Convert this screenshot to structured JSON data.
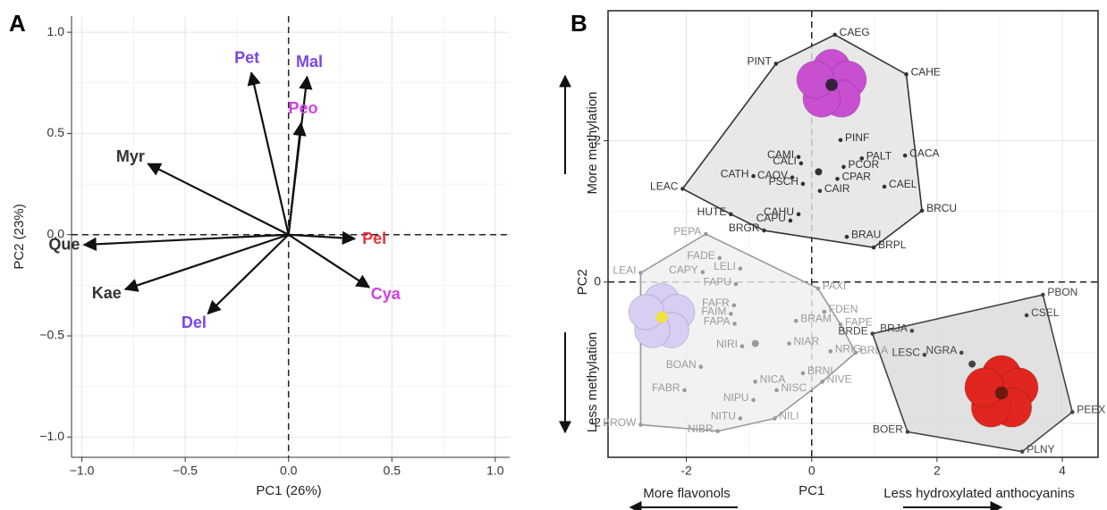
{
  "chart_data": [
    {
      "type": "biplot",
      "panel": "A",
      "xlabel": "PC1 (26%)",
      "ylabel": "PC2 (23%)",
      "xlim": [
        -1.05,
        1.07
      ],
      "ylim": [
        -1.1,
        1.08
      ],
      "grid": true,
      "xticks": [
        {
          "value": -1,
          "label": "−1.0"
        },
        {
          "value": -0.5,
          "label": "−0.5"
        },
        {
          "value": 0,
          "label": "0.0"
        },
        {
          "value": 0.5,
          "label": "0.5"
        },
        {
          "value": 1,
          "label": "1.0"
        }
      ],
      "yticks": [
        {
          "value": -1,
          "label": "−1.0"
        },
        {
          "value": -0.5,
          "label": "−0.5"
        },
        {
          "value": 0,
          "label": "0.0"
        },
        {
          "value": 0.5,
          "label": "0.5"
        },
        {
          "value": 1,
          "label": "1.0"
        }
      ],
      "arrows": [
        {
          "name": "Pet",
          "x": -0.18,
          "y": 0.8,
          "color": "#7b45e8"
        },
        {
          "name": "Mal",
          "x": 0.09,
          "y": 0.78,
          "color": "#7b45e8"
        },
        {
          "name": "Peo",
          "x": 0.06,
          "y": 0.55,
          "color": "#d23fe6"
        },
        {
          "name": "Myr",
          "x": -0.68,
          "y": 0.35,
          "color": "#333333"
        },
        {
          "name": "Pel",
          "x": 0.32,
          "y": -0.02,
          "color": "#e8343c"
        },
        {
          "name": "Cya",
          "x": 0.39,
          "y": -0.26,
          "color": "#d23fe6"
        },
        {
          "name": "Del",
          "x": -0.39,
          "y": -0.39,
          "color": "#7b45e8"
        },
        {
          "name": "Kae",
          "x": -0.79,
          "y": -0.27,
          "color": "#333333"
        },
        {
          "name": "Que",
          "x": -0.99,
          "y": -0.05,
          "color": "#333333"
        }
      ]
    },
    {
      "type": "scatter",
      "panel": "B",
      "xlabel": "PC1",
      "ylabel": "PC2",
      "annotations": {
        "y_up": "More methylation",
        "y_down": "Less methylation",
        "x_left": "More flavonols",
        "x_right": "Less hydroxylated anthocyanins"
      },
      "xlim": [
        -3.25,
        4.57
      ],
      "ylim": [
        -2.48,
        3.84
      ],
      "grid": true,
      "xticks": [
        -2,
        0,
        2,
        4
      ],
      "yticks": [
        -2,
        0,
        2
      ],
      "groups": [
        {
          "color": "#333333",
          "fill": "#e2e2e2",
          "labels": [
            "CAEG",
            "PINT",
            "CAHE",
            "PINF",
            "CAMI",
            "CACA",
            "PALT",
            "CALI",
            "PCOR",
            "CATH",
            "CAOV",
            "CPAR",
            "PSCH",
            "CAEL",
            "CAIR",
            "LEAC",
            "HUTE",
            "CAHU",
            "CAPU",
            "BRGR",
            "BRCU",
            "BRAU",
            "BRPL"
          ],
          "x": [
            0.37,
            -0.57,
            1.51,
            0.46,
            -0.21,
            1.49,
            0.8,
            -0.17,
            0.51,
            -0.93,
            -0.31,
            0.41,
            -0.14,
            1.16,
            0.13,
            -2.06,
            -1.29,
            -0.21,
            -0.34,
            -0.76,
            1.76,
            0.56,
            0.99
          ],
          "y": [
            3.5,
            3.09,
            2.94,
            2.01,
            1.77,
            1.79,
            1.75,
            1.68,
            1.63,
            1.5,
            1.48,
            1.46,
            1.39,
            1.35,
            1.29,
            1.32,
            0.96,
            0.96,
            0.87,
            0.73,
            1.01,
            0.64,
            0.49
          ],
          "centroid": [
            0.11,
            1.56
          ]
        },
        {
          "color": "#9a9a9a",
          "fill": "#efefef",
          "labels": [
            "PEPA",
            "FADE",
            "CAPY",
            "LEAI",
            "LELI",
            "FAPU",
            "PAXI",
            "FAFR",
            "FDEN",
            "FAIM",
            "BRAM",
            "FAPA",
            "FAPE",
            "NIAR",
            "NIRI",
            "NRIG",
            "BRLA",
            "BOAN",
            "BRNI",
            "NICA",
            "NIVE",
            "FABR",
            "NISC",
            "NIPU",
            "NILI",
            "NITU",
            "BROW",
            "NIBR"
          ],
          "x": [
            -1.69,
            -1.47,
            -1.74,
            -2.73,
            -1.14,
            -1.21,
            0.1,
            -1.24,
            0.2,
            -1.29,
            -0.25,
            -1.23,
            0.46,
            -0.36,
            -1.11,
            0.3,
            0.7,
            -1.77,
            -0.14,
            -0.9,
            0.17,
            -2.03,
            -0.56,
            -0.93,
            -0.59,
            -1.14,
            -2.73,
            -1.5
          ],
          "y": [
            0.68,
            0.34,
            0.14,
            0.13,
            0.19,
            -0.03,
            -0.09,
            -0.33,
            -0.42,
            -0.45,
            -0.55,
            -0.59,
            -0.6,
            -0.87,
            -0.91,
            -0.98,
            -1.0,
            -1.2,
            -1.29,
            -1.41,
            -1.41,
            -1.53,
            -1.53,
            -1.67,
            -1.93,
            -1.93,
            -2.02,
            -2.11
          ],
          "centroid": [
            -0.9,
            -0.87
          ]
        },
        {
          "color": "#444444",
          "fill": "#dadada",
          "labels": [
            "PBON",
            "CSEL",
            "BRJA",
            "BRDE",
            "NGRA",
            "LESC",
            "PEEX",
            "BOER",
            "PLNY"
          ],
          "x": [
            3.69,
            3.43,
            1.6,
            0.97,
            2.39,
            1.8,
            4.16,
            1.53,
            3.36
          ],
          "y": [
            -0.18,
            -0.47,
            -0.69,
            -0.73,
            -1.0,
            -1.03,
            -1.84,
            -2.12,
            -2.4
          ],
          "centroid": [
            2.56,
            -1.16
          ]
        }
      ]
    }
  ]
}
